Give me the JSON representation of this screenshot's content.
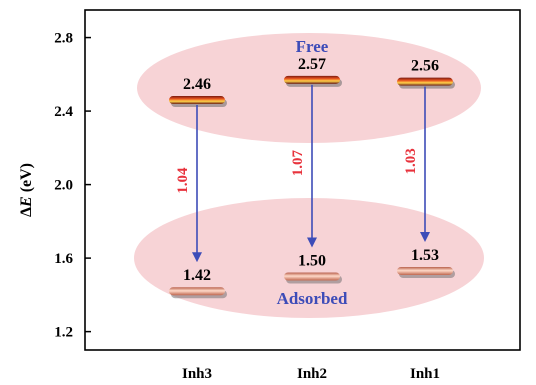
{
  "chart_data": {
    "type": "energy-level diagram",
    "ylabel_prefix": "Δ",
    "ylabel_var": "E",
    "ylabel_unit": " (eV)",
    "ylim": [
      1.1,
      2.95
    ],
    "yticks": [
      "1.2",
      "1.6",
      "2.0",
      "2.4",
      "2.8"
    ],
    "categories": [
      "Inh3",
      "Inh2",
      "Inh1"
    ],
    "free_label": "Free",
    "adsorbed_label": "Adsorbed",
    "free": [
      2.46,
      2.57,
      2.56
    ],
    "free_text": [
      "2.46",
      "2.57",
      "2.56"
    ],
    "adsorbed": [
      1.42,
      1.5,
      1.53
    ],
    "adsorbed_text": [
      "1.42",
      "1.50",
      "1.53"
    ],
    "gaps": [
      "1.04",
      "1.07",
      "1.03"
    ],
    "colors": {
      "free_level": "#d94a1e",
      "adsorbed_level": "#f4a58e",
      "ellipse": "#f7d3d6",
      "arrow": "#3d4cb8",
      "gap_text": "#e8323c",
      "region_label": "#3d4cb8"
    }
  }
}
